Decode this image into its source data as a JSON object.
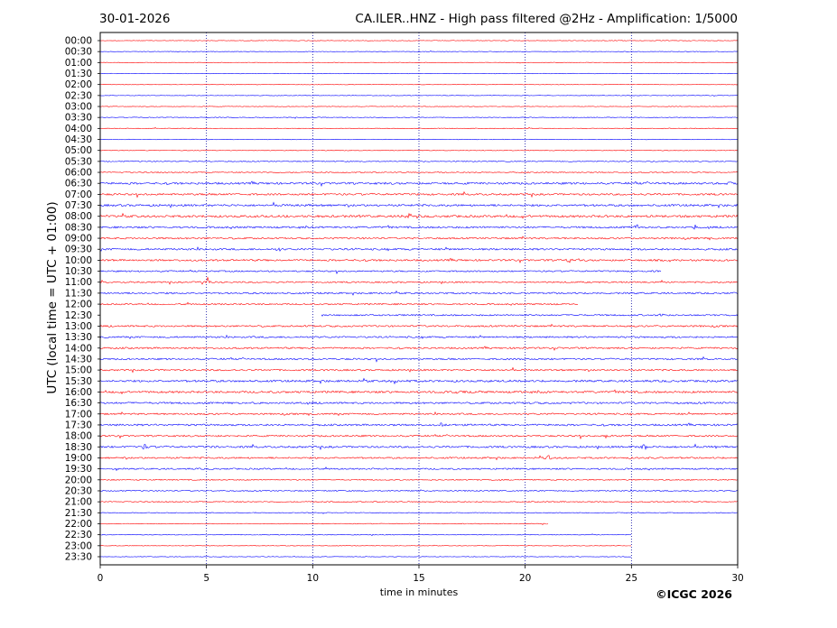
{
  "chart_data": {
    "type": "line",
    "date": "30-01-2026",
    "title": "CA.ILER..HNZ - High pass filtered @2Hz - Amplification: 1/5000",
    "xlabel": "time in minutes",
    "ylabel": "UTC (local time = UTC + 01:00)",
    "copyright": "©ICGC 2026",
    "xlim": [
      0,
      30
    ],
    "x_ticks": [
      0,
      5,
      10,
      15,
      20,
      25,
      30
    ],
    "vertical_grid_minutes": [
      5,
      10,
      15,
      20,
      25
    ],
    "row_labels": [
      "00:00",
      "00:30",
      "01:00",
      "01:30",
      "02:00",
      "02:30",
      "03:00",
      "03:30",
      "04:00",
      "04:30",
      "05:00",
      "05:30",
      "06:00",
      "06:30",
      "07:00",
      "07:30",
      "08:00",
      "08:30",
      "09:00",
      "09:30",
      "10:00",
      "10:30",
      "11:00",
      "11:30",
      "12:00",
      "12:30",
      "13:00",
      "13:30",
      "14:00",
      "14:30",
      "15:00",
      "15:30",
      "16:00",
      "16:30",
      "17:00",
      "17:30",
      "18:00",
      "18:30",
      "19:00",
      "19:30",
      "20:00",
      "20:30",
      "21:00",
      "21:30",
      "22:00",
      "22:30",
      "23:00",
      "23:30"
    ],
    "trace_colors": [
      "#ff0000",
      "#0000ff"
    ],
    "noise_level": [
      0.3,
      0.3,
      0.3,
      0.3,
      0.3,
      0.3,
      0.3,
      0.4,
      0.4,
      0.3,
      0.4,
      0.5,
      0.6,
      1.1,
      1.0,
      1.1,
      1.2,
      1.0,
      0.9,
      1.0,
      1.0,
      0.8,
      0.8,
      0.9,
      0.8,
      0.8,
      0.9,
      0.9,
      0.9,
      0.9,
      0.9,
      1.1,
      1.1,
      1.0,
      0.9,
      1.0,
      0.9,
      1.0,
      0.9,
      0.8,
      0.6,
      0.6,
      0.6,
      0.4,
      0.4,
      0.4,
      0.3,
      0.3
    ],
    "events": [
      {
        "row": "11:00",
        "minute": 5.0,
        "amplitude": 7
      },
      {
        "row": "08:00",
        "minute": 14.4,
        "amplitude": 4
      },
      {
        "row": "15:30",
        "minute": 13.9,
        "amplitude": 3
      },
      {
        "row": "15:30",
        "minute": 18.5,
        "amplitude": 3
      },
      {
        "row": "16:00",
        "minute": 20.9,
        "amplitude": 3
      },
      {
        "row": "16:00",
        "minute": 16.9,
        "amplitude": 2
      },
      {
        "row": "18:30",
        "minute": 2.1,
        "amplitude": 3
      },
      {
        "row": "18:30",
        "minute": 5.5,
        "amplitude": 3
      },
      {
        "row": "18:30",
        "minute": 25.6,
        "amplitude": 3
      },
      {
        "row": "18:30",
        "minute": 29.0,
        "amplitude": 2
      },
      {
        "row": "19:00",
        "minute": 21.1,
        "amplitude": 3
      },
      {
        "row": "10:00",
        "minute": 22.1,
        "amplitude": 3
      },
      {
        "row": "08:30",
        "minute": 25.3,
        "amplitude": 3
      },
      {
        "row": "08:30",
        "minute": 28.0,
        "amplitude": 3
      },
      {
        "row": "12:30",
        "minute": 26.4,
        "amplitude": 3
      },
      {
        "row": "17:30",
        "minute": 16.1,
        "amplitude": 3
      },
      {
        "row": "06:30",
        "minute": 29.6,
        "amplitude": 3
      },
      {
        "row": "09:30",
        "minute": 8.4,
        "amplitude": 3
      },
      {
        "row": "18:00",
        "minute": 23.9,
        "amplitude": 3
      }
    ],
    "gaps": [
      {
        "row": "10:30",
        "from": 26.4,
        "to": 30
      },
      {
        "row": "12:00",
        "from": 22.5,
        "to": 30
      },
      {
        "row": "12:30",
        "from": 0,
        "to": 10.4
      },
      {
        "row": "22:00",
        "from": 21.1,
        "to": 30
      },
      {
        "row": "22:30",
        "from": 25.0,
        "to": 30
      },
      {
        "row": "23:00",
        "from": 25.0,
        "to": 30
      },
      {
        "row": "23:30",
        "from": 25.0,
        "to": 30
      }
    ]
  }
}
